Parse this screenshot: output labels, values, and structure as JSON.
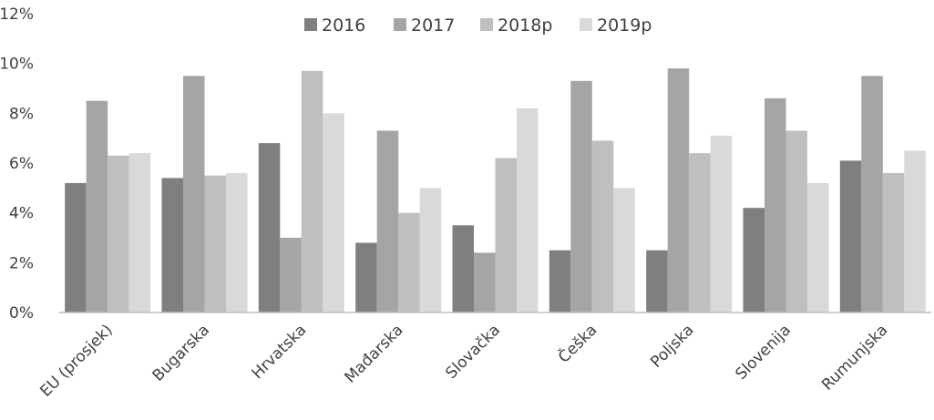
{
  "chart_data": {
    "type": "bar",
    "title": "",
    "xlabel": "",
    "ylabel": "",
    "ylim": [
      0,
      12
    ],
    "yticks": [
      0,
      2,
      4,
      6,
      8,
      10,
      12
    ],
    "ytick_labels": [
      "0%",
      "2%",
      "4%",
      "6%",
      "8%",
      "10%",
      "12%"
    ],
    "grid": false,
    "legend_position": "top-center",
    "categories": [
      "EU (prosjek)",
      "Bugarska",
      "Hrvatska",
      "Mađarska",
      "Slovačka",
      "Češka",
      "Poljska",
      "Slovenija",
      "Rumunjska"
    ],
    "series": [
      {
        "name": "2016",
        "color": "#7f7f7f",
        "values": [
          5.2,
          5.4,
          6.8,
          2.8,
          3.5,
          2.5,
          2.5,
          4.2,
          6.1
        ]
      },
      {
        "name": "2017",
        "color": "#a5a5a5",
        "values": [
          8.5,
          9.5,
          3.0,
          7.3,
          2.4,
          9.3,
          9.8,
          8.6,
          9.5
        ]
      },
      {
        "name": "2018p",
        "color": "#bfbfbf",
        "values": [
          6.3,
          5.5,
          9.7,
          4.0,
          6.2,
          6.9,
          6.4,
          7.3,
          5.6
        ]
      },
      {
        "name": "2019p",
        "color": "#d9d9d9",
        "values": [
          6.4,
          5.6,
          8.0,
          5.0,
          8.2,
          5.0,
          7.1,
          5.2,
          6.5
        ]
      }
    ]
  }
}
